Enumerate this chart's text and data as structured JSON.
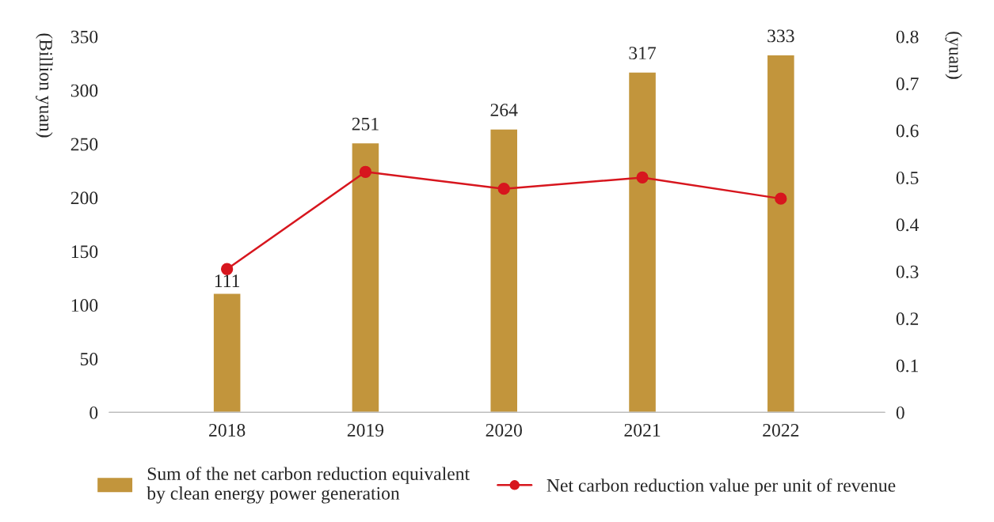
{
  "chart_data": {
    "type": "bar",
    "categories": [
      "2018",
      "2019",
      "2020",
      "2021",
      "2022"
    ],
    "ylabel": "(Billion yuan)",
    "y2label": "(yuan)",
    "ylim": [
      0,
      350
    ],
    "yticks": [
      0,
      50,
      100,
      150,
      200,
      250,
      300,
      350
    ],
    "y2lim": [
      0,
      0.8
    ],
    "y2ticks": [
      0,
      0.1,
      0.2,
      0.3,
      0.4,
      0.5,
      0.6,
      0.7,
      0.8
    ],
    "series": [
      {
        "name": "Sum of the net carbon reduction equivalent\nby clean energy power generation",
        "type": "bar",
        "color": "#c2953c",
        "values": [
          111,
          251,
          264,
          317,
          333
        ],
        "data_labels": true
      },
      {
        "name": "Net carbon reduction value per unit of revenue",
        "type": "line",
        "axis": "y2",
        "color": "#d7161e",
        "values": [
          0.305,
          0.512,
          0.476,
          0.5,
          0.455
        ],
        "marker": "circle",
        "line_style": "solid"
      }
    ],
    "grid": false,
    "legend": "bottom"
  }
}
